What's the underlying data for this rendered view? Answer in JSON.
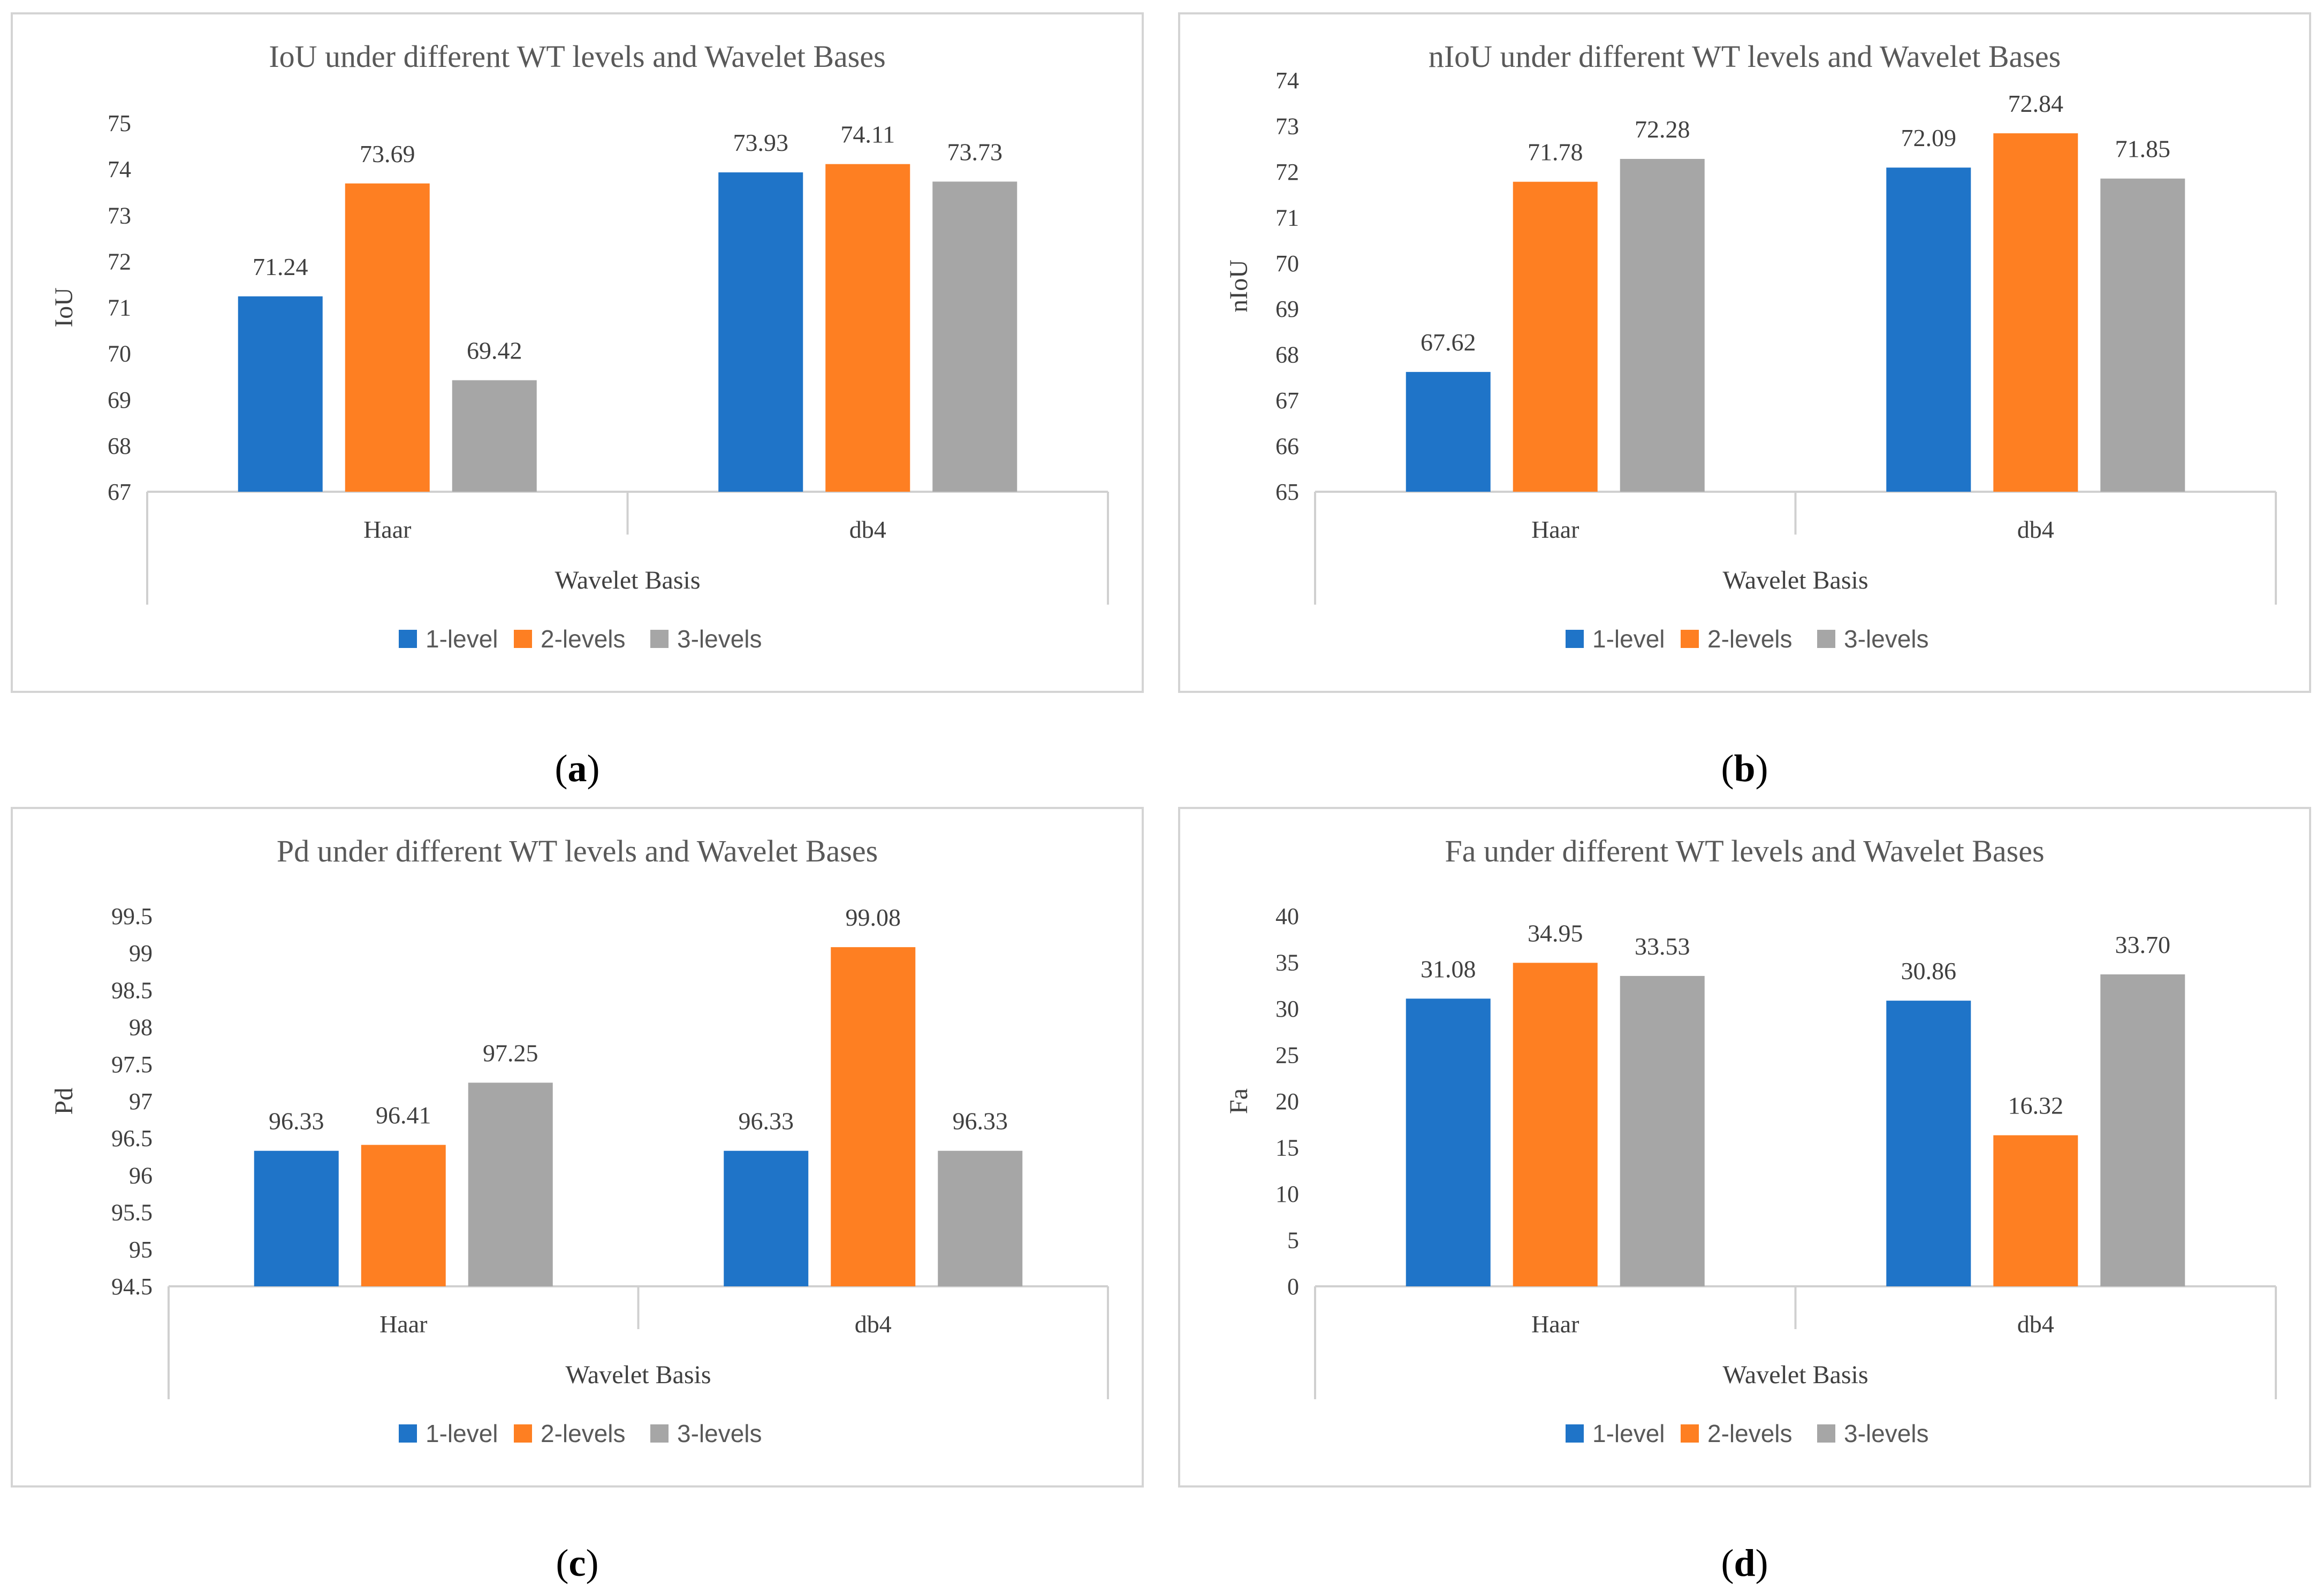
{
  "colors": {
    "series": [
      "#1f74c8",
      "#fe7f22",
      "#a6a6a6"
    ]
  },
  "chart_data": [
    {
      "type": "bar",
      "caption": "a",
      "title": "IoU under different WT levels and Wavelet Bases",
      "xlabel": "Wavelet Basis",
      "ylabel": "IoU",
      "categories": [
        "Haar",
        "db4"
      ],
      "ylim": [
        67,
        75
      ],
      "yticks": [
        "67",
        "68",
        "69",
        "70",
        "71",
        "72",
        "73",
        "74",
        "75"
      ],
      "legend": "bottom",
      "series": [
        {
          "name": "1-level",
          "values": [
            71.24,
            73.93
          ],
          "labels": [
            "71.24",
            "73.93"
          ]
        },
        {
          "name": "2-levels",
          "values": [
            73.69,
            74.11
          ],
          "labels": [
            "73.69",
            "74.11"
          ]
        },
        {
          "name": "3-levels",
          "values": [
            69.42,
            73.73
          ],
          "labels": [
            "69.42",
            "73.73"
          ]
        }
      ]
    },
    {
      "type": "bar",
      "caption": "b",
      "title": "nIoU under different WT levels and Wavelet Bases",
      "xlabel": "Wavelet Basis",
      "ylabel": "nIoU",
      "categories": [
        "Haar",
        "db4"
      ],
      "ylim": [
        65,
        74
      ],
      "yticks": [
        "65",
        "66",
        "67",
        "68",
        "69",
        "70",
        "71",
        "72",
        "73",
        "74"
      ],
      "legend": "bottom",
      "series": [
        {
          "name": "1-level",
          "values": [
            67.62,
            72.09
          ],
          "labels": [
            "67.62",
            "72.09"
          ]
        },
        {
          "name": "2-levels",
          "values": [
            71.78,
            72.84
          ],
          "labels": [
            "71.78",
            "72.84"
          ]
        },
        {
          "name": "3-levels",
          "values": [
            72.28,
            71.85
          ],
          "labels": [
            "72.28",
            "71.85"
          ]
        }
      ]
    },
    {
      "type": "bar",
      "caption": "c",
      "title": "Pd under different WT levels and Wavelet Bases",
      "xlabel": "Wavelet Basis",
      "ylabel": "Pd",
      "categories": [
        "Haar",
        "db4"
      ],
      "ylim": [
        94.5,
        99.5
      ],
      "yticks": [
        "94.5",
        "95",
        "95.5",
        "96",
        "96.5",
        "97",
        "97.5",
        "98",
        "98.5",
        "99",
        "99.5"
      ],
      "legend": "bottom",
      "series": [
        {
          "name": "1-level",
          "values": [
            96.33,
            96.33
          ],
          "labels": [
            "96.33",
            "96.33"
          ]
        },
        {
          "name": "2-levels",
          "values": [
            96.41,
            99.08
          ],
          "labels": [
            "96.41",
            "99.08"
          ]
        },
        {
          "name": "3-levels",
          "values": [
            97.25,
            96.33
          ],
          "labels": [
            "97.25",
            "96.33"
          ]
        }
      ]
    },
    {
      "type": "bar",
      "caption": "d",
      "title": "Fa under different WT levels and Wavelet Bases",
      "xlabel": "Wavelet Basis",
      "ylabel": "Fa",
      "categories": [
        "Haar",
        "db4"
      ],
      "ylim": [
        0,
        40
      ],
      "yticks": [
        "0",
        "5",
        "10",
        "15",
        "20",
        "25",
        "30",
        "35",
        "40"
      ],
      "legend": "bottom",
      "series": [
        {
          "name": "1-level",
          "values": [
            31.08,
            30.86
          ],
          "labels": [
            "31.08",
            "30.86"
          ]
        },
        {
          "name": "2-levels",
          "values": [
            34.95,
            16.32
          ],
          "labels": [
            "34.95",
            "16.32"
          ]
        },
        {
          "name": "3-levels",
          "values": [
            33.53,
            33.7
          ],
          "labels": [
            "33.53",
            "33.70"
          ]
        }
      ]
    }
  ]
}
